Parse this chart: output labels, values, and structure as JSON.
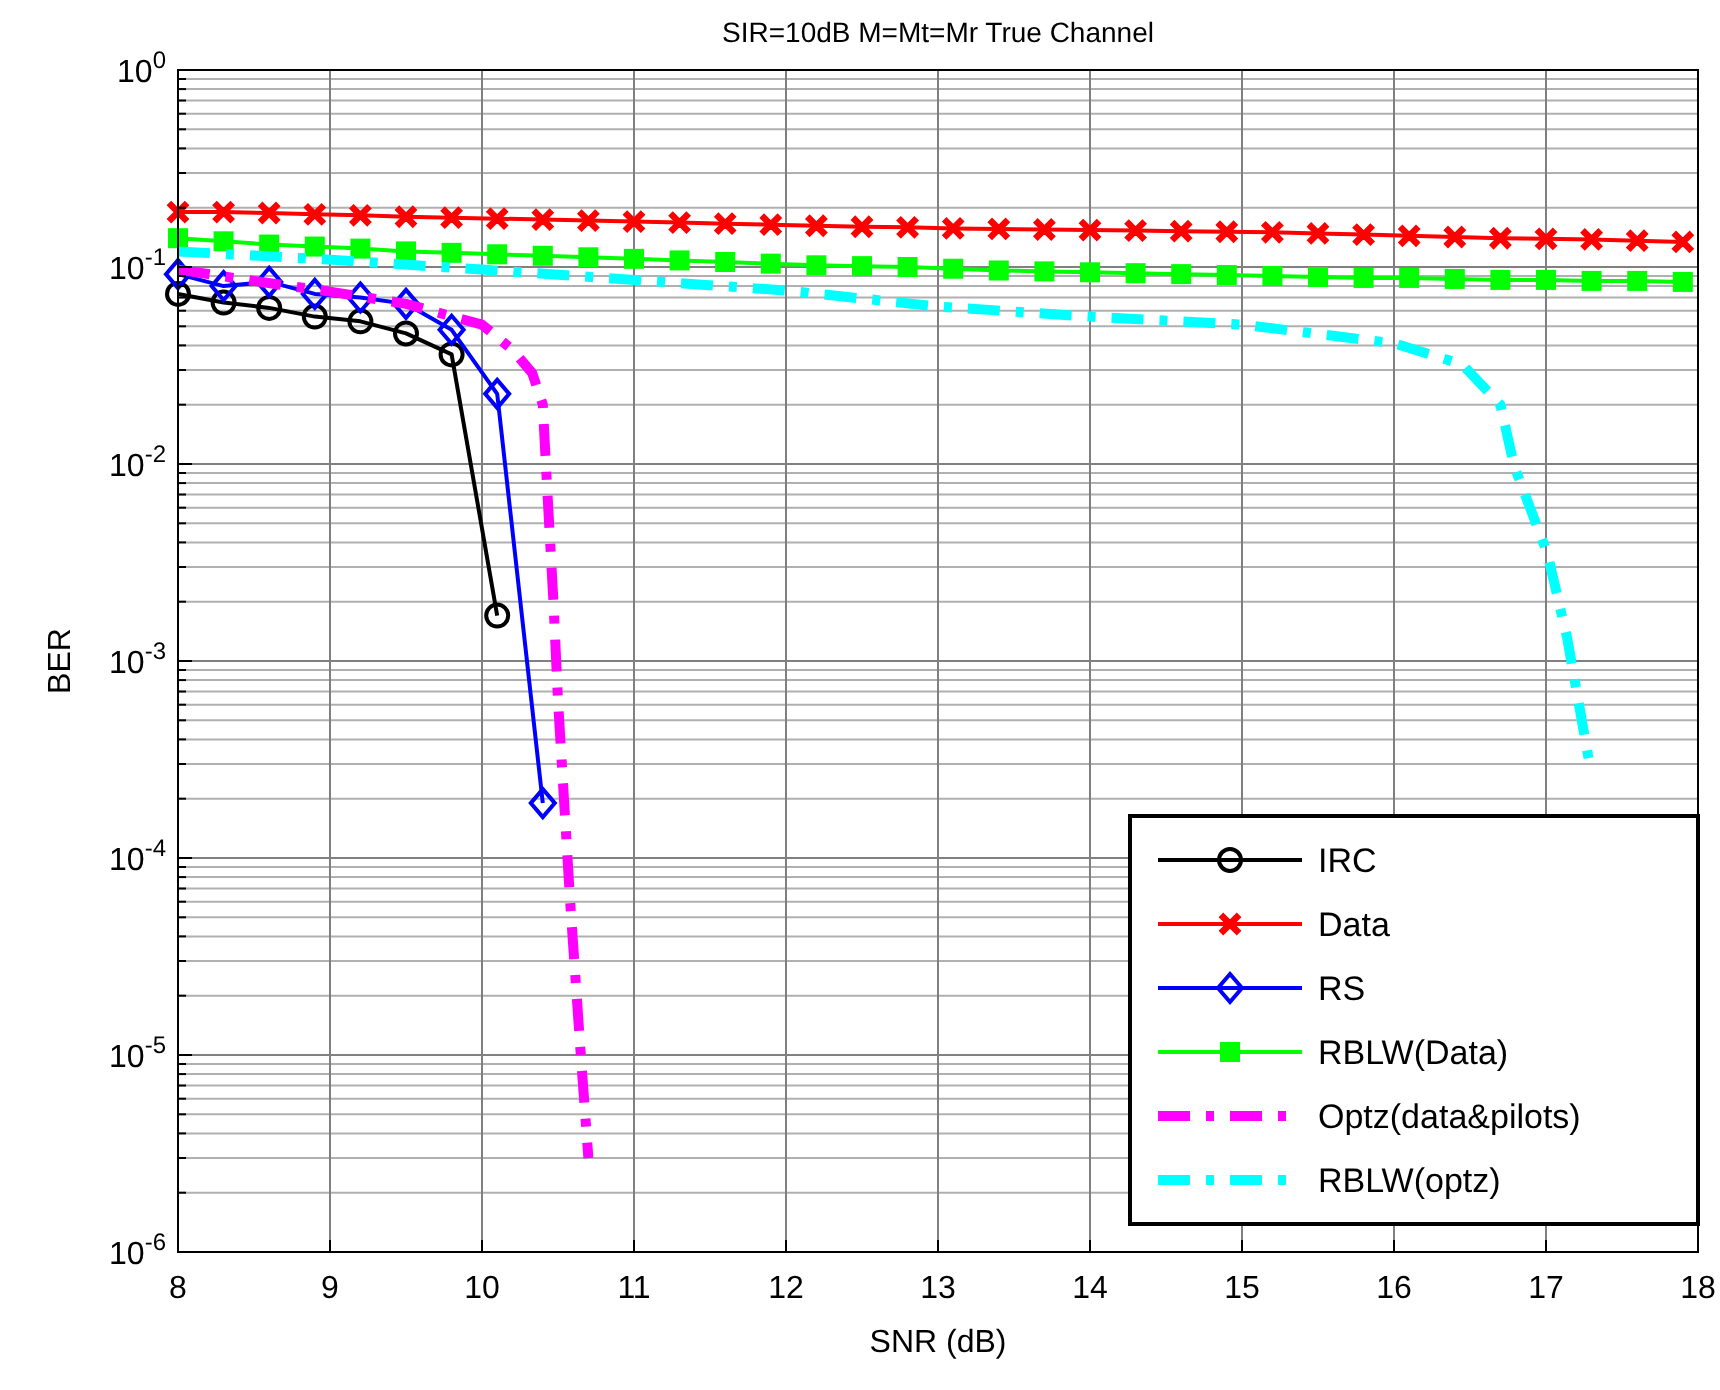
{
  "chart_data": {
    "type": "line",
    "title": "SIR=10dB M=Mt=Mr True Channel",
    "xlabel": "SNR (dB)",
    "ylabel": "BER",
    "log": "y",
    "grid": true,
    "legend": "bottom right",
    "xlim": [
      8,
      18
    ],
    "xticks": [
      8,
      9,
      10,
      11,
      12,
      13,
      14,
      15,
      16,
      17,
      18
    ],
    "ylim": [
      1e-06,
      1
    ],
    "yticks": [
      {
        "value": 1e-06,
        "label": "10$^{-6}$"
      },
      {
        "value": 1e-05,
        "label": "10$^{-5}$"
      },
      {
        "value": 0.0001,
        "label": "10$^{-4}$"
      },
      {
        "value": 0.001,
        "label": "10$^{-3}$"
      },
      {
        "value": 0.01,
        "label": "10$^{-2}$"
      },
      {
        "value": 0.1,
        "label": "10$^{-1}$"
      },
      {
        "value": 1,
        "label": "10$^{0}$"
      }
    ],
    "series": [
      {
        "name": "IRC",
        "color": "#000000",
        "marker": "circle",
        "line_style": "solid",
        "x": [
          8,
          8.3,
          8.6,
          8.9,
          9.2,
          9.5,
          9.8,
          10.1
        ],
        "values": [
          0.073,
          0.066,
          0.062,
          0.056,
          0.053,
          0.046,
          0.036,
          0.0017
        ]
      },
      {
        "name": "Data",
        "color": "#ff0000",
        "marker": "cross",
        "line_style": "solid",
        "x": [
          8,
          8.3,
          8.6,
          8.9,
          9.2,
          9.5,
          9.8,
          10.1,
          10.4,
          10.7,
          11,
          11.3,
          11.6,
          11.9,
          12.2,
          12.5,
          12.8,
          13.1,
          13.4,
          13.7,
          14,
          14.3,
          14.6,
          14.9,
          15.2,
          15.5,
          15.8,
          16.1,
          16.4,
          16.7,
          17,
          17.3,
          17.6,
          17.9
        ],
        "values": [
          0.19,
          0.19,
          0.188,
          0.185,
          0.183,
          0.18,
          0.178,
          0.176,
          0.174,
          0.172,
          0.17,
          0.168,
          0.166,
          0.164,
          0.162,
          0.16,
          0.159,
          0.157,
          0.156,
          0.155,
          0.154,
          0.153,
          0.152,
          0.151,
          0.15,
          0.148,
          0.146,
          0.144,
          0.142,
          0.14,
          0.139,
          0.138,
          0.136,
          0.134
        ]
      },
      {
        "name": "RS",
        "color": "#0000ff",
        "marker": "diamond",
        "line_style": "solid",
        "x": [
          8,
          8.3,
          8.6,
          8.9,
          9.2,
          9.5,
          9.8,
          10.1,
          10.4
        ],
        "values": [
          0.092,
          0.08,
          0.084,
          0.073,
          0.07,
          0.065,
          0.048,
          0.0227,
          0.00019
        ]
      },
      {
        "name": "RBLW(Data)",
        "color": "#00ff00",
        "marker": "square",
        "line_style": "solid",
        "x": [
          8,
          8.3,
          8.6,
          8.9,
          9.2,
          9.5,
          9.8,
          10.1,
          10.4,
          10.7,
          11,
          11.3,
          11.6,
          11.9,
          12.2,
          12.5,
          12.8,
          13.1,
          13.4,
          13.7,
          14,
          14.3,
          14.6,
          14.9,
          15.2,
          15.5,
          15.8,
          16.1,
          16.4,
          16.7,
          17,
          17.3,
          17.6,
          17.9
        ],
        "values": [
          0.14,
          0.135,
          0.13,
          0.127,
          0.124,
          0.12,
          0.118,
          0.116,
          0.114,
          0.112,
          0.11,
          0.108,
          0.106,
          0.104,
          0.102,
          0.101,
          0.1,
          0.098,
          0.096,
          0.095,
          0.094,
          0.093,
          0.092,
          0.091,
          0.09,
          0.089,
          0.088,
          0.088,
          0.087,
          0.086,
          0.086,
          0.085,
          0.085,
          0.084
        ]
      },
      {
        "name": "Optz(data&pilots)",
        "color": "#ff00ff",
        "marker": "none",
        "line_style": "dashed",
        "x": [
          8,
          8.5,
          9,
          9.5,
          10,
          10.2,
          10.33,
          10.4,
          10.42,
          10.47,
          10.5,
          10.58,
          10.65,
          10.7
        ],
        "values": [
          0.097,
          0.085,
          0.075,
          0.065,
          0.051,
          0.038,
          0.029,
          0.02,
          0.01,
          0.002,
          0.00063,
          6e-05,
          1e-05,
          3e-06
        ]
      },
      {
        "name": "RBLW(optz)",
        "color": "#00ffff",
        "marker": "none",
        "line_style": "dashed",
        "x": [
          8,
          9,
          10,
          11,
          12,
          13,
          14,
          15,
          16,
          16.45,
          16.7,
          16.79,
          17.01,
          17.14,
          17.29
        ],
        "values": [
          0.12,
          0.109,
          0.097,
          0.086,
          0.076,
          0.063,
          0.056,
          0.051,
          0.041,
          0.032,
          0.02,
          0.0098,
          0.0035,
          0.0013,
          0.00029
        ]
      }
    ]
  }
}
